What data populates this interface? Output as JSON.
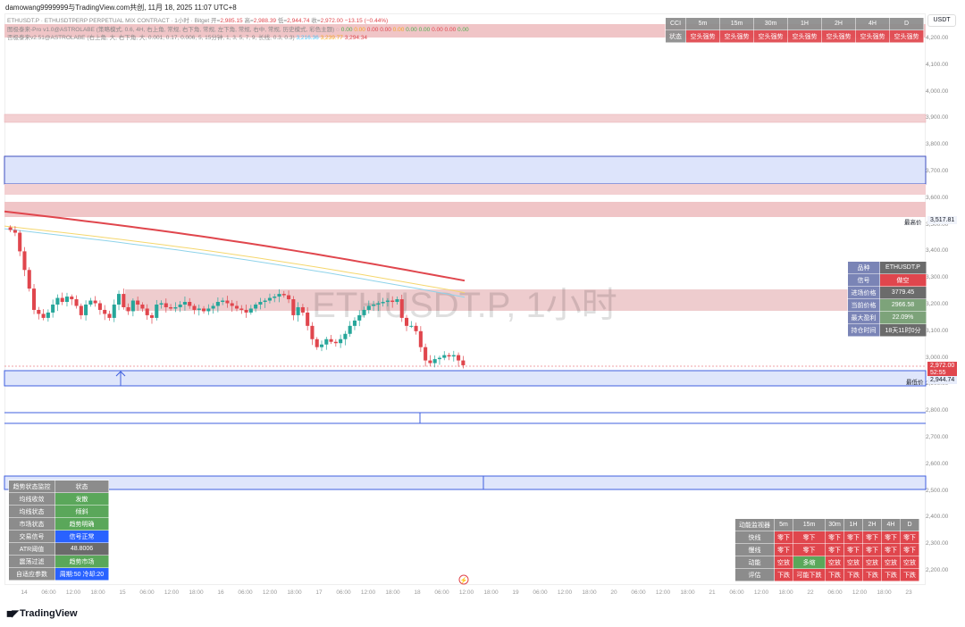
{
  "header": {
    "title": "damowang9999999与TradingView.com共创, 11月 18, 2025 11:07 UTC+8"
  },
  "legend": {
    "symbol": "ETHUSDT.P · ETHUSDTPERP PERPETUAL MIX CONTRACT · 1小时 · Bitget",
    "o_label": "开=",
    "o": "2,985.15",
    "h_label": "高=",
    "h": "2,988.39",
    "l_label": "低=",
    "l": "2,944.74",
    "c_label": "收=",
    "c": "2,972.00",
    "chg": "−13.15 (−0.44%)",
    "ind1": "图极泰来-Pro v1.0@ASTROLABE (策略模式, 0.6, 4H, 右上角, 常规, 右下角, 常规, 左下角, 常规, 右中, 常规, 历史模式, 彩色主题)",
    "ind1_vals": [
      "0.00",
      "0.00",
      "0.00",
      "0.00",
      "0.00",
      "0.00",
      "0.00",
      "0.00",
      "0.00",
      "0.00"
    ],
    "ind2": "否极泰来v2.51@ASTROLABE (右上角, 大, 右下角, 大, 0.001, 0.17, 0.006, 5, 15分钟, 1, 3, 5, 7, 9, 长线, 0.3, 0.3)",
    "ind2_vals": [
      "3,216.36",
      "3,239.77",
      "3,294.34"
    ]
  },
  "watermark": "ETHUSDT.P, 1小时",
  "currency": "USDT",
  "price_axis": [
    "4,200.00",
    "4,100.00",
    "4,000.00",
    "3,900.00",
    "3,800.00",
    "3,700.00",
    "3,600.00",
    "3,500.00",
    "3,400.00",
    "3,300.00",
    "3,200.00",
    "3,100.00",
    "3,000.00",
    "2,900.00",
    "2,800.00",
    "2,700.00",
    "2,600.00",
    "2,500.00",
    "2,400.00",
    "2,300.00",
    "2,200.00"
  ],
  "high_label": "最高价",
  "high_value": "3,517.81",
  "low_label": "最低价",
  "low_value": "2,944.74",
  "current_price": "2,972.00",
  "countdown": "52:55",
  "time_axis": [
    "14",
    "06:00",
    "12:00",
    "18:00",
    "15",
    "06:00",
    "12:00",
    "18:00",
    "16",
    "06:00",
    "12:00",
    "18:00",
    "17",
    "06:00",
    "12:00",
    "18:00",
    "18",
    "06:00",
    "12:00",
    "18:00",
    "19",
    "06:00",
    "12:00",
    "18:00",
    "20",
    "06:00",
    "12:00",
    "18:00",
    "21",
    "06:00",
    "12:00",
    "18:00",
    "22",
    "06:00",
    "12:00",
    "18:00",
    "23"
  ],
  "closes": [
    3480,
    3470,
    3400,
    3330,
    3260,
    3180,
    3165,
    3150,
    3170,
    3200,
    3225,
    3210,
    3230,
    3220,
    3195,
    3160,
    3200,
    3215,
    3205,
    3180,
    3165,
    3150,
    3200,
    3240,
    3190,
    3175,
    3215,
    3200,
    3185,
    3160,
    3150,
    3200,
    3205,
    3190,
    3185,
    3190,
    3200,
    3210,
    3195,
    3180,
    3185,
    3175,
    3185,
    3195,
    3210,
    3215,
    3205,
    3195,
    3185,
    3180,
    3170,
    3185,
    3200,
    3210,
    3215,
    3225,
    3230,
    3240,
    3235,
    3220,
    3160,
    3190,
    3170,
    3120,
    3070,
    3040,
    3050,
    3070,
    3060,
    3055,
    3070,
    3090,
    3120,
    3140,
    3160,
    3180,
    3195,
    3200,
    3205,
    3210,
    3215,
    3210,
    3220,
    3150,
    3120,
    3120,
    3100,
    3040,
    2990,
    2980,
    2995,
    3000,
    3010,
    3005,
    3010,
    2990,
    2972
  ],
  "colors": {
    "up": "#26a69a",
    "down": "#e0464d",
    "ma_red": "#e0464d",
    "ma_yellow": "#f5d76e",
    "ma_blue": "#8fd3ea"
  },
  "cci_table": {
    "corner": "CCI",
    "headers": [
      "5m",
      "15m",
      "30m",
      "1H",
      "2H",
      "4H",
      "D"
    ],
    "row_label": "状态",
    "values": [
      "空头强势",
      "空头强势",
      "空头强势",
      "空头强势",
      "空头强势",
      "空头强势",
      "空头强势"
    ]
  },
  "info_table": [
    [
      "品种",
      "ETHUSDT.P"
    ],
    [
      "信号",
      "做空"
    ],
    [
      "进场价格",
      "3779.45"
    ],
    [
      "当前价格",
      "2966.58"
    ],
    [
      "最大盈利",
      "22.09%"
    ],
    [
      "持仓时间",
      "18天11时0分"
    ]
  ],
  "trend_table": {
    "headers": [
      "趋势状态监控",
      "状态"
    ],
    "rows": [
      [
        "均线收敛",
        "发散"
      ],
      [
        "均线状态",
        "倾斜"
      ],
      [
        "市场状态",
        "趋势明确"
      ],
      [
        "交易信号",
        "信号正常"
      ],
      [
        "ATR阈值",
        "48.8006"
      ],
      [
        "震荡过滤",
        "趋势市场"
      ],
      [
        "自适应参数",
        "周期:50 冷却:20"
      ]
    ]
  },
  "momentum_table": {
    "headers": [
      "动能监视器",
      "5m",
      "15m",
      "30m",
      "1H",
      "2H",
      "4H",
      "D"
    ],
    "rows": [
      [
        "快线",
        "零下",
        "零下",
        "零下",
        "零下",
        "零下",
        "零下",
        "零下"
      ],
      [
        "慢线",
        "零下",
        "零下",
        "零下",
        "零下",
        "零下",
        "零下",
        "零下"
      ],
      [
        "动能",
        "空放",
        "多缩",
        "空放",
        "空放",
        "空放",
        "空放",
        "空放"
      ],
      [
        "评估",
        "下跌",
        "可能下跌",
        "下跌",
        "下跌",
        "下跌",
        "下跌",
        "下跌"
      ]
    ]
  },
  "brand": "TradingView"
}
